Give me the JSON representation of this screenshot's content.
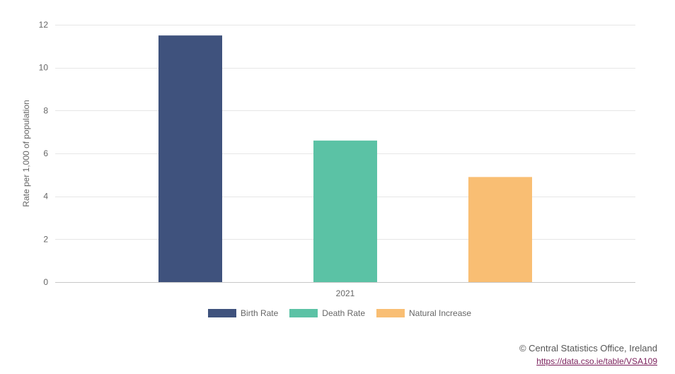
{
  "chart_data": {
    "type": "bar",
    "categories": [
      "2021"
    ],
    "series": [
      {
        "name": "Birth Rate",
        "values": [
          11.5
        ],
        "color": "#3f527d"
      },
      {
        "name": "Death Rate",
        "values": [
          6.6
        ],
        "color": "#5bc2a5"
      },
      {
        "name": "Natural Increase",
        "values": [
          4.9
        ],
        "color": "#f9be73"
      }
    ],
    "ylabel": "Rate per 1,000 of population",
    "xlabel": "",
    "ylim": [
      0,
      12
    ],
    "yticks": [
      0,
      2,
      4,
      6,
      8,
      10,
      12
    ],
    "grid": true,
    "legend_position": "bottom"
  },
  "credits": {
    "source": "© Central Statistics Office, Ireland",
    "link": "https://data.cso.ie/table/VSA109"
  }
}
